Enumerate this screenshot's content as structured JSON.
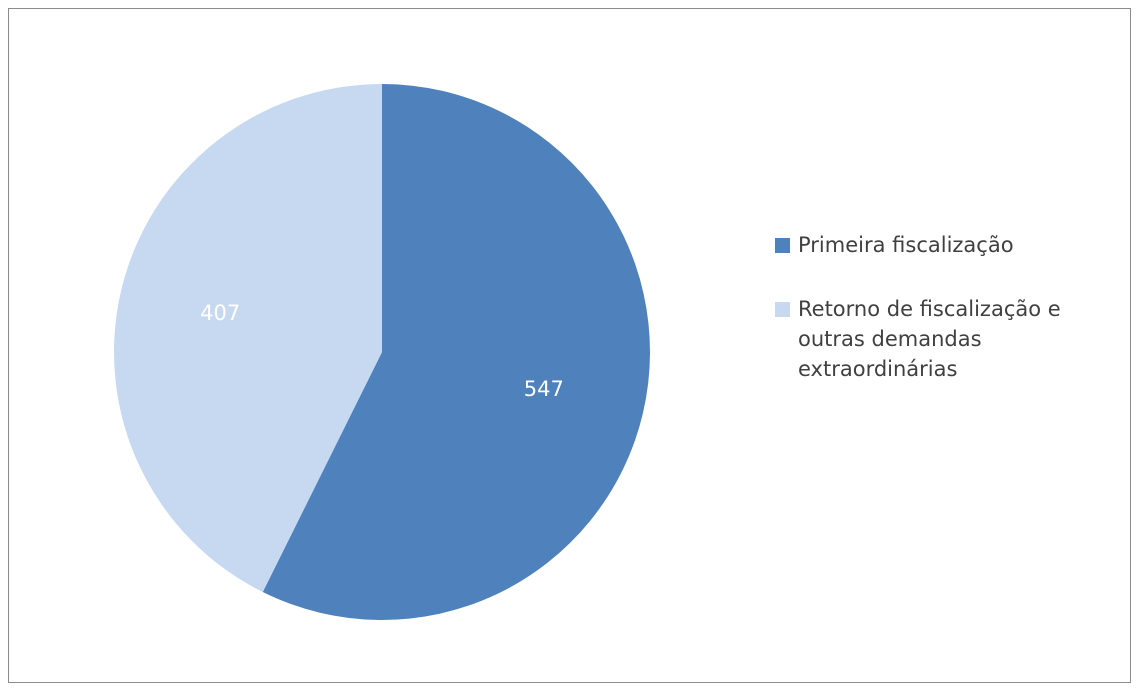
{
  "chart_data": {
    "type": "pie",
    "categories": [
      "Primeira fiscalização",
      "Retorno de fiscalização e outras demandas extraordinárias"
    ],
    "values": [
      547,
      407
    ],
    "colors": [
      "#4f81bd",
      "#c6d9f1"
    ],
    "labels": [
      "547",
      "407"
    ],
    "legend": {
      "entries": [
        "Primeira fiscalização",
        "Retorno de fiscalização e outras demandas extraordinárias"
      ],
      "placement": "right"
    },
    "title": ""
  }
}
